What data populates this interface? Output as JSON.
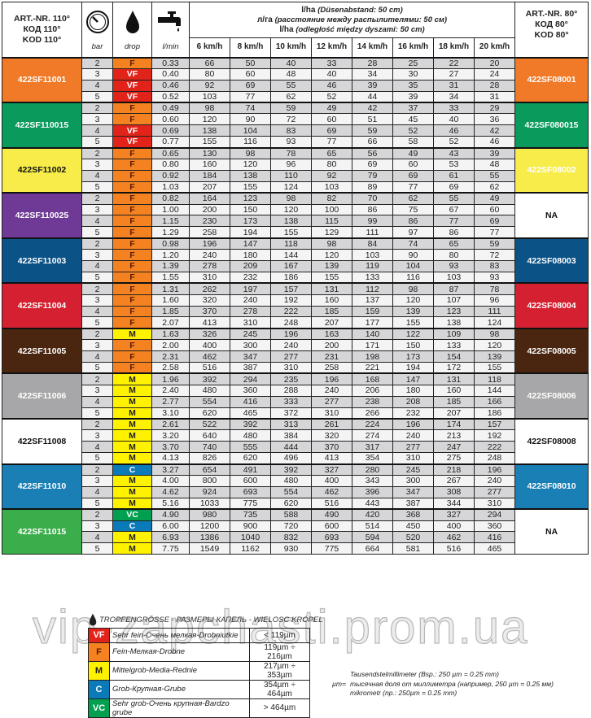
{
  "header": {
    "left": [
      "ART.-NR. 110°",
      "КОД 110°",
      "KOD 110°"
    ],
    "right": [
      "ART.-NR. 80°",
      "КОД 80°",
      "KOD 80°"
    ],
    "bar_label": "bar",
    "drop_label": "drop",
    "flow_label": "l/min",
    "title_lines": [
      [
        "l/ha",
        "(Düsenabstand: 50 cm)"
      ],
      [
        "л/га",
        "(расстояние между распылителями: 50 см)"
      ],
      [
        "l/ha",
        "(odległość między dyszami: 50 cm)"
      ]
    ],
    "speeds": [
      "6 km/h",
      "8 km/h",
      "10 km/h",
      "12 km/h",
      "14 km/h",
      "16 km/h",
      "18 km/h",
      "20 km/h"
    ],
    "icons": [
      "pressure-gauge-icon",
      "drop-icon",
      "faucet-icon"
    ]
  },
  "drop_colors": {
    "VF": "#e2231a",
    "F": "#f58220",
    "M": "#fff200",
    "C": "#0a7ab8",
    "VC": "#00a050"
  },
  "groups": [
    {
      "model": "422SF11001",
      "color": "#f07a28",
      "right": "422SF08001",
      "rcolor": "#f07a28",
      "rows": [
        [
          "2",
          "F",
          "0.33",
          "66",
          "50",
          "40",
          "33",
          "28",
          "25",
          "22",
          "20"
        ],
        [
          "3",
          "VF",
          "0.40",
          "80",
          "60",
          "48",
          "40",
          "34",
          "30",
          "27",
          "24"
        ],
        [
          "4",
          "VF",
          "0.46",
          "92",
          "69",
          "55",
          "46",
          "39",
          "35",
          "31",
          "28"
        ],
        [
          "5",
          "VF",
          "0.52",
          "103",
          "77",
          "62",
          "52",
          "44",
          "39",
          "34",
          "31"
        ]
      ]
    },
    {
      "model": "422SF110015",
      "color": "#0a9a5c",
      "right": "422SF080015",
      "rcolor": "#0a9a5c",
      "rows": [
        [
          "2",
          "F",
          "0.49",
          "98",
          "74",
          "59",
          "49",
          "42",
          "37",
          "33",
          "29"
        ],
        [
          "3",
          "F",
          "0.60",
          "120",
          "90",
          "72",
          "60",
          "51",
          "45",
          "40",
          "36"
        ],
        [
          "4",
          "VF",
          "0.69",
          "138",
          "104",
          "83",
          "69",
          "59",
          "52",
          "46",
          "42"
        ],
        [
          "5",
          "VF",
          "0.77",
          "155",
          "116",
          "93",
          "77",
          "66",
          "58",
          "52",
          "46"
        ]
      ]
    },
    {
      "model": "422SF11002",
      "color": "#f7ec4a",
      "right": "422SF08002",
      "rcolor": "#f7ec4a",
      "dark": true,
      "rows": [
        [
          "2",
          "F",
          "0.65",
          "130",
          "98",
          "78",
          "65",
          "56",
          "49",
          "43",
          "39"
        ],
        [
          "3",
          "F",
          "0.80",
          "160",
          "120",
          "96",
          "80",
          "69",
          "60",
          "53",
          "48"
        ],
        [
          "4",
          "F",
          "0.92",
          "184",
          "138",
          "110",
          "92",
          "79",
          "69",
          "61",
          "55"
        ],
        [
          "5",
          "F",
          "1.03",
          "207",
          "155",
          "124",
          "103",
          "89",
          "77",
          "69",
          "62"
        ]
      ]
    },
    {
      "model": "422SF110025",
      "color": "#6f3a96",
      "right": "NA",
      "rcolor": "#ffffff",
      "rdark": true,
      "rows": [
        [
          "2",
          "F",
          "0.82",
          "164",
          "123",
          "98",
          "82",
          "70",
          "62",
          "55",
          "49"
        ],
        [
          "3",
          "F",
          "1.00",
          "200",
          "150",
          "120",
          "100",
          "86",
          "75",
          "67",
          "60"
        ],
        [
          "4",
          "F",
          "1.15",
          "230",
          "173",
          "138",
          "115",
          "99",
          "86",
          "77",
          "69"
        ],
        [
          "5",
          "F",
          "1.29",
          "258",
          "194",
          "155",
          "129",
          "111",
          "97",
          "86",
          "77"
        ]
      ]
    },
    {
      "model": "422SF11003",
      "color": "#0b5286",
      "right": "422SF08003",
      "rcolor": "#0b5286",
      "rows": [
        [
          "2",
          "F",
          "0.98",
          "196",
          "147",
          "118",
          "98",
          "84",
          "74",
          "65",
          "59"
        ],
        [
          "3",
          "F",
          "1.20",
          "240",
          "180",
          "144",
          "120",
          "103",
          "90",
          "80",
          "72"
        ],
        [
          "4",
          "F",
          "1.39",
          "278",
          "209",
          "167",
          "139",
          "119",
          "104",
          "93",
          "83"
        ],
        [
          "5",
          "F",
          "1.55",
          "310",
          "232",
          "186",
          "155",
          "133",
          "116",
          "103",
          "93"
        ]
      ]
    },
    {
      "model": "422SF11004",
      "color": "#d42030",
      "right": "422SF08004",
      "rcolor": "#d42030",
      "rows": [
        [
          "2",
          "F",
          "1.31",
          "262",
          "197",
          "157",
          "131",
          "112",
          "98",
          "87",
          "78"
        ],
        [
          "3",
          "F",
          "1.60",
          "320",
          "240",
          "192",
          "160",
          "137",
          "120",
          "107",
          "96"
        ],
        [
          "4",
          "F",
          "1.85",
          "370",
          "278",
          "222",
          "185",
          "159",
          "139",
          "123",
          "111"
        ],
        [
          "5",
          "F",
          "2.07",
          "413",
          "310",
          "248",
          "207",
          "177",
          "155",
          "138",
          "124"
        ]
      ]
    },
    {
      "model": "422SF11005",
      "color": "#4a2610",
      "right": "422SF08005",
      "rcolor": "#4a2610",
      "rows": [
        [
          "2",
          "M",
          "1.63",
          "326",
          "245",
          "196",
          "163",
          "140",
          "122",
          "109",
          "98"
        ],
        [
          "3",
          "F",
          "2.00",
          "400",
          "300",
          "240",
          "200",
          "171",
          "150",
          "133",
          "120"
        ],
        [
          "4",
          "F",
          "2.31",
          "462",
          "347",
          "277",
          "231",
          "198",
          "173",
          "154",
          "139"
        ],
        [
          "5",
          "F",
          "2.58",
          "516",
          "387",
          "310",
          "258",
          "221",
          "194",
          "172",
          "155"
        ]
      ]
    },
    {
      "model": "422SF11006",
      "color": "#a7a7a9",
      "right": "422SF08006",
      "rcolor": "#a7a7a9",
      "rows": [
        [
          "2",
          "M",
          "1.96",
          "392",
          "294",
          "235",
          "196",
          "168",
          "147",
          "131",
          "118"
        ],
        [
          "3",
          "M",
          "2.40",
          "480",
          "360",
          "288",
          "240",
          "206",
          "180",
          "160",
          "144"
        ],
        [
          "4",
          "M",
          "2.77",
          "554",
          "416",
          "333",
          "277",
          "238",
          "208",
          "185",
          "166"
        ],
        [
          "5",
          "M",
          "3.10",
          "620",
          "465",
          "372",
          "310",
          "266",
          "232",
          "207",
          "186"
        ]
      ]
    },
    {
      "model": "422SF11008",
      "color": "#ffffff",
      "right": "422SF08008",
      "rcolor": "#ffffff",
      "dark": true,
      "rdark": true,
      "rows": [
        [
          "2",
          "M",
          "2.61",
          "522",
          "392",
          "313",
          "261",
          "224",
          "196",
          "174",
          "157"
        ],
        [
          "3",
          "M",
          "3.20",
          "640",
          "480",
          "384",
          "320",
          "274",
          "240",
          "213",
          "192"
        ],
        [
          "4",
          "M",
          "3.70",
          "740",
          "555",
          "444",
          "370",
          "317",
          "277",
          "247",
          "222"
        ],
        [
          "5",
          "M",
          "4.13",
          "826",
          "620",
          "496",
          "413",
          "354",
          "310",
          "275",
          "248"
        ]
      ]
    },
    {
      "model": "422SF11010",
      "color": "#1a7fb5",
      "right": "422SF08010",
      "rcolor": "#1a7fb5",
      "rows": [
        [
          "2",
          "C",
          "3.27",
          "654",
          "491",
          "392",
          "327",
          "280",
          "245",
          "218",
          "196"
        ],
        [
          "3",
          "M",
          "4.00",
          "800",
          "600",
          "480",
          "400",
          "343",
          "300",
          "267",
          "240"
        ],
        [
          "4",
          "M",
          "4.62",
          "924",
          "693",
          "554",
          "462",
          "396",
          "347",
          "308",
          "277"
        ],
        [
          "5",
          "M",
          "5.16",
          "1033",
          "775",
          "620",
          "516",
          "443",
          "387",
          "344",
          "310"
        ]
      ]
    },
    {
      "model": "422SF11015",
      "color": "#3aae4a",
      "right": "NA",
      "rcolor": "#ffffff",
      "rdark": true,
      "rows": [
        [
          "2",
          "VC",
          "4.90",
          "980",
          "735",
          "588",
          "490",
          "420",
          "368",
          "327",
          "294"
        ],
        [
          "3",
          "C",
          "6.00",
          "1200",
          "900",
          "720",
          "600",
          "514",
          "450",
          "400",
          "360"
        ],
        [
          "4",
          "M",
          "6.93",
          "1386",
          "1040",
          "832",
          "693",
          "594",
          "520",
          "462",
          "416"
        ],
        [
          "5",
          "M",
          "7.75",
          "1549",
          "1162",
          "930",
          "775",
          "664",
          "581",
          "516",
          "465"
        ]
      ]
    }
  ],
  "legend": {
    "title": "TROPFENGRÖSSE - РАЗМЕРЫ КАПЕЛЬ - WIELOSC KROPEL",
    "rows": [
      {
        "code": "VF",
        "name": "Sehr fein-Очень мелкая-Drobniutkie",
        "size": "< 119µm"
      },
      {
        "code": "F",
        "name": "Fein-Мелкая-Drobne",
        "size": "119µm ÷ 216µm"
      },
      {
        "code": "M",
        "name": "Mittelgrob-Media-Rednie",
        "size": "217µm ÷ 353µm"
      },
      {
        "code": "C",
        "name": "Grob-Крупная-Grube",
        "size": "354µm ÷ 464µm"
      },
      {
        "code": "VC",
        "name": "Sehr grob-Очень крупная-Bardzo grube",
        "size": "> 464µm"
      }
    ]
  },
  "note": {
    "prefix": "µm=",
    "lines": [
      "Tausendstelmillimeter (Bsp.: 250 µm = 0.25 mm)",
      "тысячная доля от миллиметра (например, 250 µm = 0.25 мм)",
      "mikrometr (np.: 250µm = 0.25 mm)"
    ]
  },
  "watermark": "vip-zapchasti.prom.ua"
}
